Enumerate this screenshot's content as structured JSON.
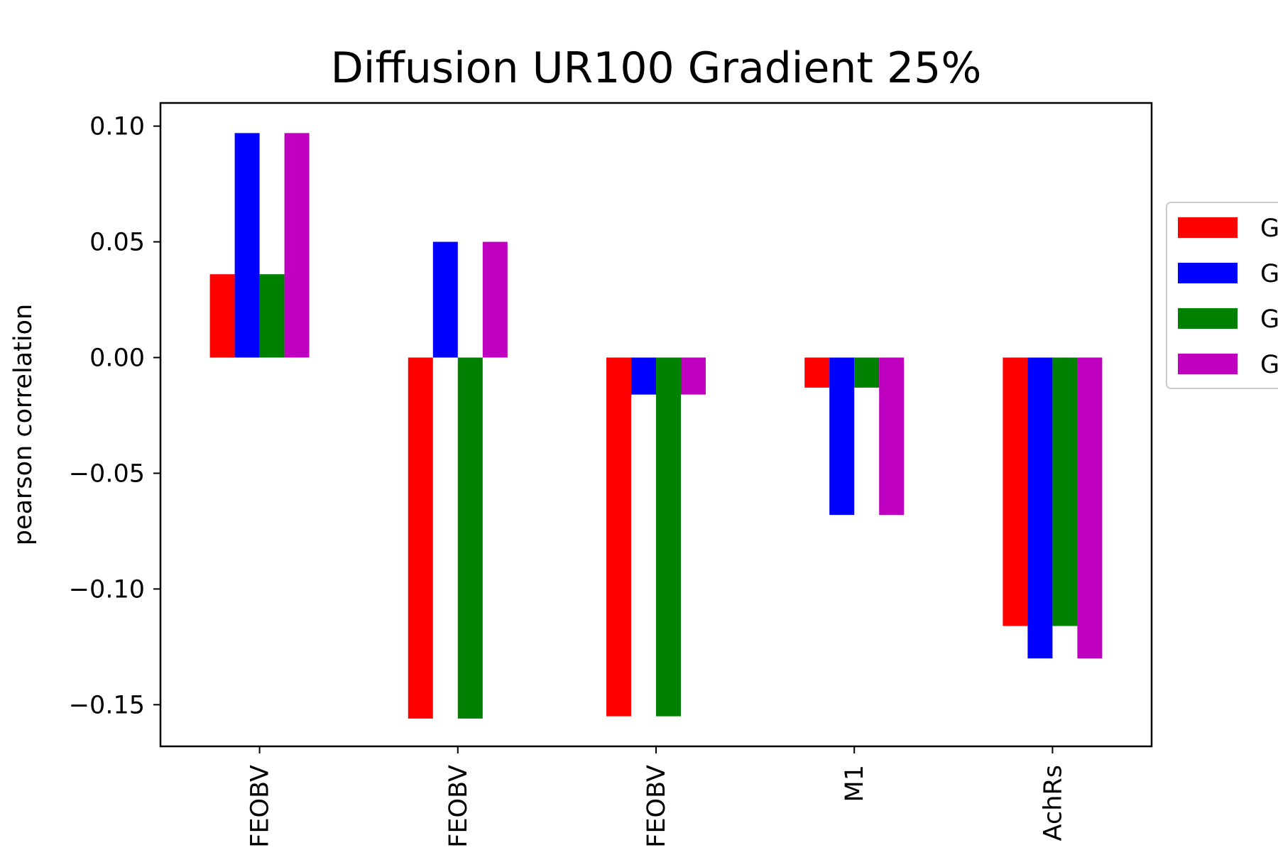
{
  "chart_data": {
    "type": "bar",
    "title": "Diffusion UR100 Gradient 25%",
    "ylabel": "pearson correlation",
    "xlabel": "",
    "categories": [
      "FEOBV",
      "FEOBV",
      "FEOBV",
      "M1",
      "AchRs"
    ],
    "ylim": [
      -0.168,
      0.11
    ],
    "yticks": [
      0.1,
      0.05,
      0.0,
      -0.05,
      -0.1,
      -0.15
    ],
    "ytick_labels": [
      "0.10",
      "0.05",
      "0.00",
      "−0.05",
      "−0.10",
      "−0.15"
    ],
    "series": [
      {
        "name": "G",
        "color": "#ff0000",
        "values": [
          0.036,
          -0.156,
          -0.155,
          -0.013,
          -0.116
        ]
      },
      {
        "name": "G",
        "color": "#0000ff",
        "values": [
          0.097,
          0.05,
          -0.016,
          -0.068,
          -0.13
        ]
      },
      {
        "name": "G",
        "color": "#008000",
        "values": [
          0.036,
          -0.156,
          -0.155,
          -0.013,
          -0.116
        ]
      },
      {
        "name": "G",
        "color": "#bf00bf",
        "values": [
          0.097,
          0.05,
          -0.016,
          -0.068,
          -0.13
        ]
      }
    ],
    "legend": "right, clipped",
    "grid": false
  }
}
